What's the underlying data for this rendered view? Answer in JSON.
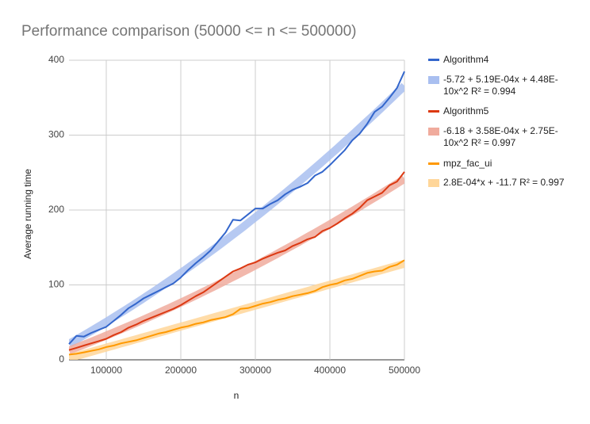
{
  "chart_data": {
    "type": "line",
    "title": "Performance comparison (50000 <= n <= 500000)",
    "x_label": "n",
    "y_label": "Average running time",
    "x": [
      50000,
      60000,
      70000,
      80000,
      90000,
      100000,
      110000,
      120000,
      130000,
      140000,
      150000,
      160000,
      170000,
      180000,
      190000,
      200000,
      210000,
      220000,
      230000,
      240000,
      250000,
      260000,
      270000,
      280000,
      290000,
      300000,
      310000,
      320000,
      330000,
      340000,
      350000,
      360000,
      370000,
      380000,
      390000,
      400000,
      410000,
      420000,
      430000,
      440000,
      450000,
      460000,
      470000,
      480000,
      490000,
      500000
    ],
    "series": [
      {
        "name": "Algorithm4",
        "color": "#3366cc",
        "values": [
          21,
          32,
          31,
          36,
          40,
          44,
          52,
          60,
          69,
          75,
          82,
          87,
          92,
          97,
          102,
          110,
          120,
          129,
          137,
          146,
          158,
          170,
          187,
          186,
          194,
          202,
          202,
          208,
          213,
          221,
          227,
          231,
          236,
          246,
          251,
          260,
          270,
          280,
          293,
          302,
          315,
          331,
          338,
          350,
          363,
          385
        ]
      },
      {
        "name": "Algorithm5",
        "color": "#dc3912",
        "values": [
          13,
          16,
          19,
          22,
          25,
          28,
          33,
          37,
          43,
          47,
          52,
          56,
          60,
          64,
          68,
          73,
          79,
          85,
          90,
          97,
          104,
          111,
          118,
          122,
          127,
          130,
          135,
          139,
          143,
          146,
          152,
          156,
          161,
          164,
          172,
          176,
          182,
          189,
          195,
          203,
          213,
          218,
          223,
          233,
          238,
          251
        ]
      },
      {
        "name": "mpz_fac_ui",
        "color": "#ff9900",
        "values": [
          7,
          8,
          10,
          12,
          14,
          17,
          19,
          22,
          24,
          26,
          29,
          32,
          35,
          37,
          40,
          43,
          45,
          48,
          50,
          53,
          55,
          57,
          61,
          68,
          69,
          72,
          75,
          77,
          80,
          82,
          85,
          87,
          89,
          92,
          97,
          100,
          102,
          106,
          108,
          112,
          116,
          118,
          119,
          124,
          127,
          133
        ]
      }
    ],
    "trendlines": [
      {
        "label": "-5.72 + 5.19E-04x + 4.48E-10x^2 R² = 0.994",
        "color": "#a9bff0",
        "coefficients": [
          -5.72,
          0.000519,
          4.48e-10
        ]
      },
      {
        "label": "-6.18 + 3.58E-04x + 2.75E-10x^2 R² = 0.997",
        "color": "#f0ab9d",
        "coefficients": [
          -6.18,
          0.000358,
          2.75e-10
        ]
      },
      {
        "label": "2.8E-04*x + -11.7 R² = 0.997",
        "color": "#ffd699",
        "coefficients": [
          -11.7,
          0.00028
        ]
      }
    ],
    "xlim": [
      50000,
      500000
    ],
    "xticks": [
      100000,
      200000,
      300000,
      400000,
      500000
    ],
    "ylim": [
      0,
      400
    ],
    "yticks": [
      0,
      100,
      200,
      300,
      400
    ],
    "grid": true
  }
}
